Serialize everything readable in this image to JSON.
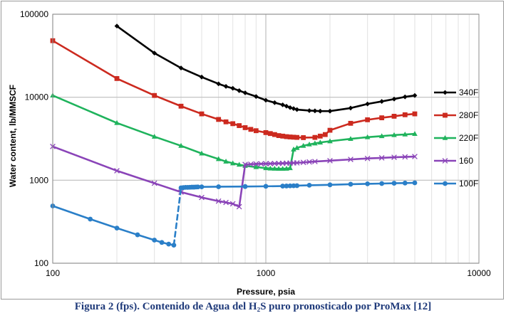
{
  "caption": "Figura 2 (fps). Contenido de Agua del H₂S puro pronosticado por ProMax [12]",
  "chart_data": {
    "type": "line",
    "title": "",
    "xlabel": "Pressure, psia",
    "ylabel": "Water content, lb/MMSCF",
    "xscale": "log",
    "yscale": "log",
    "xlim": [
      100,
      10000
    ],
    "ylim": [
      100,
      100000
    ],
    "x_ticks": [
      "100",
      "1000",
      "10000"
    ],
    "y_ticks": [
      "100",
      "1000",
      "10000",
      "100000"
    ],
    "grid": true,
    "legend_position": "right",
    "series": [
      {
        "name": "340F",
        "color": "#000000",
        "marker": "diamond",
        "dashed_jumps": false,
        "points": [
          [
            200,
            72000
          ],
          [
            300,
            34000
          ],
          [
            400,
            22500
          ],
          [
            500,
            17500
          ],
          [
            600,
            14500
          ],
          [
            650,
            13500
          ],
          [
            700,
            12800
          ],
          [
            750,
            12000
          ],
          [
            800,
            11300
          ],
          [
            900,
            10200
          ],
          [
            1000,
            9200
          ],
          [
            1100,
            8600
          ],
          [
            1200,
            8100
          ],
          [
            1250,
            7800
          ],
          [
            1300,
            7500
          ],
          [
            1350,
            7300
          ],
          [
            1400,
            7100
          ],
          [
            1600,
            6900
          ],
          [
            1700,
            6850
          ],
          [
            1800,
            6800
          ],
          [
            2000,
            6800
          ],
          [
            2500,
            7400
          ],
          [
            3000,
            8300
          ],
          [
            3500,
            8900
          ],
          [
            4000,
            9500
          ],
          [
            4500,
            10100
          ],
          [
            5000,
            10500
          ]
        ]
      },
      {
        "name": "280F",
        "color": "#cc2a1f",
        "marker": "square",
        "dashed_jumps": false,
        "points": [
          [
            100,
            48000
          ],
          [
            200,
            16800
          ],
          [
            300,
            10500
          ],
          [
            400,
            7800
          ],
          [
            500,
            6300
          ],
          [
            600,
            5400
          ],
          [
            650,
            5050
          ],
          [
            700,
            4800
          ],
          [
            750,
            4550
          ],
          [
            800,
            4300
          ],
          [
            850,
            4100
          ],
          [
            900,
            3950
          ],
          [
            1000,
            3750
          ],
          [
            1050,
            3650
          ],
          [
            1100,
            3550
          ],
          [
            1150,
            3450
          ],
          [
            1200,
            3400
          ],
          [
            1250,
            3350
          ],
          [
            1300,
            3320
          ],
          [
            1350,
            3300
          ],
          [
            1400,
            3280
          ],
          [
            1500,
            3260
          ],
          [
            1700,
            3280
          ],
          [
            1800,
            3400
          ],
          [
            1900,
            3550
          ],
          [
            2000,
            4000
          ],
          [
            2500,
            4850
          ],
          [
            3000,
            5350
          ],
          [
            3500,
            5650
          ],
          [
            4000,
            5900
          ],
          [
            4500,
            6150
          ],
          [
            5000,
            6300
          ]
        ]
      },
      {
        "name": "220F",
        "color": "#1fb35c",
        "marker": "triangle",
        "dashed_jumps": false,
        "points": [
          [
            100,
            10500
          ],
          [
            200,
            4900
          ],
          [
            300,
            3350
          ],
          [
            400,
            2600
          ],
          [
            500,
            2100
          ],
          [
            600,
            1800
          ],
          [
            650,
            1680
          ],
          [
            700,
            1600
          ],
          [
            750,
            1540
          ],
          [
            800,
            1490
          ],
          [
            900,
            1440
          ],
          [
            1000,
            1400
          ],
          [
            1050,
            1385
          ],
          [
            1100,
            1380
          ],
          [
            1150,
            1375
          ],
          [
            1200,
            1375
          ],
          [
            1250,
            1380
          ],
          [
            1300,
            1400
          ],
          [
            1350,
            2350
          ],
          [
            1400,
            2450
          ],
          [
            1500,
            2600
          ],
          [
            1600,
            2700
          ],
          [
            1700,
            2780
          ],
          [
            1800,
            2850
          ],
          [
            2000,
            2950
          ],
          [
            2500,
            3150
          ],
          [
            3000,
            3300
          ],
          [
            3500,
            3400
          ],
          [
            4000,
            3500
          ],
          [
            4500,
            3560
          ],
          [
            5000,
            3620
          ]
        ]
      },
      {
        "name": "160",
        "color": "#8a44b8",
        "marker": "x",
        "dashed_jumps": false,
        "points": [
          [
            100,
            2550
          ],
          [
            200,
            1300
          ],
          [
            300,
            920
          ],
          [
            400,
            720
          ],
          [
            500,
            620
          ],
          [
            600,
            560
          ],
          [
            650,
            540
          ],
          [
            700,
            520
          ],
          [
            750,
            480
          ],
          [
            800,
            1550
          ],
          [
            850,
            1560
          ],
          [
            900,
            1570
          ],
          [
            950,
            1575
          ],
          [
            1000,
            1580
          ],
          [
            1050,
            1585
          ],
          [
            1100,
            1590
          ],
          [
            1150,
            1595
          ],
          [
            1200,
            1600
          ],
          [
            1250,
            1605
          ],
          [
            1300,
            1610
          ],
          [
            1350,
            1615
          ],
          [
            1400,
            1620
          ],
          [
            1500,
            1640
          ],
          [
            1600,
            1660
          ],
          [
            1700,
            1680
          ],
          [
            2000,
            1720
          ],
          [
            2500,
            1780
          ],
          [
            3000,
            1830
          ],
          [
            3500,
            1860
          ],
          [
            4000,
            1890
          ],
          [
            4500,
            1910
          ],
          [
            5000,
            1930
          ]
        ]
      },
      {
        "name": "100F",
        "color": "#2a7fc8",
        "marker": "circle",
        "dashed_jumps": true,
        "points": [
          [
            100,
            490
          ],
          [
            150,
            340
          ],
          [
            200,
            265
          ],
          [
            250,
            220
          ],
          [
            300,
            190
          ],
          [
            325,
            178
          ],
          [
            350,
            170
          ],
          [
            370,
            165
          ],
          [
            400,
            810
          ],
          [
            410,
            815
          ],
          [
            420,
            820
          ],
          [
            430,
            820
          ],
          [
            440,
            822
          ],
          [
            450,
            825
          ],
          [
            460,
            825
          ],
          [
            470,
            828
          ],
          [
            480,
            830
          ],
          [
            500,
            832
          ],
          [
            600,
            835
          ],
          [
            800,
            840
          ],
          [
            1000,
            845
          ],
          [
            1200,
            850
          ],
          [
            1250,
            852
          ],
          [
            1300,
            855
          ],
          [
            1350,
            858
          ],
          [
            1400,
            860
          ],
          [
            1600,
            870
          ],
          [
            2000,
            880
          ],
          [
            2500,
            895
          ],
          [
            3000,
            905
          ],
          [
            3500,
            912
          ],
          [
            4000,
            920
          ],
          [
            4500,
            925
          ],
          [
            5000,
            930
          ]
        ]
      }
    ]
  }
}
